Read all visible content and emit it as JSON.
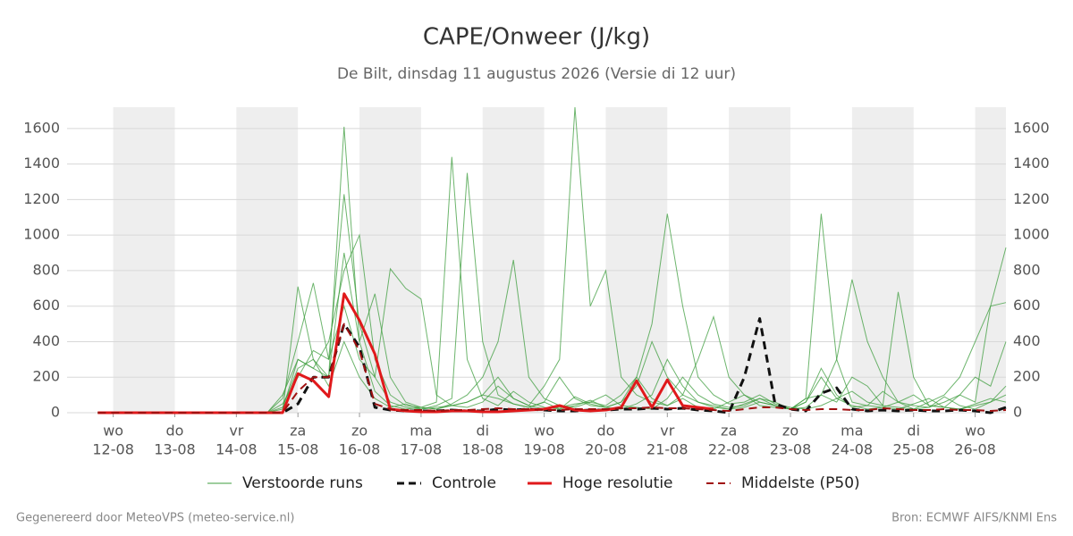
{
  "chart_data": {
    "type": "line",
    "title": "CAPE/Onweer (J/kg)",
    "subtitle": "De Bilt, dinsdag 11 augustus 2026 (Versie di 12 uur)",
    "footer_left": "Gegenereerd door MeteoVPS (meteo-service.nl)",
    "footer_right": "Bron: ECMWF AIFS/KNMI Ens",
    "x": [
      -6,
      0,
      6,
      12,
      18,
      24,
      30,
      36,
      42,
      48,
      54,
      60,
      66,
      72,
      78,
      84,
      90,
      96,
      102,
      108,
      114,
      120,
      126,
      132,
      138,
      144,
      150,
      156,
      162,
      168,
      174,
      180,
      186,
      192,
      198,
      204,
      210,
      216,
      222,
      228,
      234,
      240,
      246,
      252,
      258,
      264,
      270,
      276,
      282,
      288,
      294,
      300,
      306,
      312,
      318,
      324,
      330,
      336,
      342,
      348
    ],
    "xlim": [
      -18,
      348
    ],
    "xticks": [
      0,
      24,
      48,
      72,
      96,
      120,
      144,
      168,
      192,
      216,
      240,
      264,
      288,
      312,
      336
    ],
    "xtick_days": [
      "wo",
      "do",
      "vr",
      "za",
      "zo",
      "ma",
      "di",
      "wo",
      "do",
      "vr",
      "za",
      "zo",
      "ma",
      "di",
      "wo"
    ],
    "xtick_dates": [
      "12-08",
      "13-08",
      "14-08",
      "15-08",
      "16-08",
      "17-08",
      "18-08",
      "19-08",
      "20-08",
      "21-08",
      "22-08",
      "23-08",
      "24-08",
      "25-08",
      "26-08"
    ],
    "ylim": [
      0,
      1720
    ],
    "yticks": [
      0,
      200,
      400,
      600,
      800,
      1000,
      1200,
      1400,
      1600
    ],
    "grid": true,
    "day_shading": "#eeeeee",
    "ensemble": {
      "name": "Verstoorde runs",
      "color": "#3c9c3c",
      "members": [
        [
          0,
          0,
          0,
          0,
          0,
          0,
          0,
          0,
          0,
          0,
          0,
          0,
          100,
          300,
          250,
          200,
          1610,
          400,
          120,
          40,
          20,
          30,
          60,
          1440,
          300,
          80,
          40,
          120,
          60,
          30,
          20,
          90,
          50,
          30,
          60,
          200,
          80,
          40,
          100,
          60,
          30,
          20,
          50,
          80,
          40,
          20,
          60,
          250,
          100,
          30,
          40,
          120,
          60,
          20,
          30,
          90,
          40,
          20,
          60,
          150
        ],
        [
          0,
          0,
          0,
          0,
          0,
          0,
          0,
          0,
          0,
          0,
          0,
          0,
          50,
          200,
          350,
          300,
          1230,
          500,
          200,
          60,
          30,
          20,
          40,
          80,
          1350,
          400,
          100,
          50,
          30,
          60,
          20,
          40,
          70,
          30,
          20,
          50,
          100,
          300,
          150,
          60,
          40,
          20,
          30,
          60,
          40,
          20,
          80,
          1120,
          300,
          60,
          40,
          30,
          20,
          50,
          80,
          30,
          20,
          40,
          60,
          100
        ],
        [
          0,
          0,
          0,
          0,
          0,
          0,
          0,
          0,
          0,
          0,
          0,
          0,
          0,
          710,
          300,
          150,
          400,
          200,
          80,
          30,
          50,
          20,
          30,
          40,
          60,
          100,
          200,
          80,
          40,
          150,
          300,
          1720,
          600,
          800,
          200,
          100,
          60,
          40,
          80,
          30,
          20,
          60,
          100,
          40,
          30,
          20,
          60,
          200,
          80,
          40,
          20,
          30,
          60,
          100,
          40,
          30,
          20,
          50,
          80,
          60
        ],
        [
          0,
          0,
          0,
          0,
          0,
          0,
          0,
          0,
          0,
          0,
          0,
          0,
          20,
          300,
          250,
          400,
          800,
          1000,
          300,
          100,
          40,
          30,
          20,
          50,
          100,
          200,
          400,
          860,
          200,
          80,
          40,
          30,
          60,
          40,
          100,
          200,
          500,
          1120,
          600,
          200,
          100,
          50,
          60,
          100,
          50,
          30,
          20,
          40,
          80,
          120,
          60,
          40,
          30,
          20,
          60,
          100,
          200,
          400,
          600,
          930
        ],
        [
          0,
          0,
          0,
          0,
          0,
          0,
          0,
          0,
          0,
          0,
          0,
          0,
          80,
          400,
          730,
          300,
          600,
          300,
          200,
          810,
          700,
          640,
          100,
          40,
          30,
          60,
          150,
          80,
          40,
          20,
          30,
          50,
          60,
          100,
          40,
          30,
          20,
          80,
          200,
          100,
          50,
          30,
          40,
          80,
          60,
          20,
          30,
          100,
          60,
          200,
          150,
          40,
          680,
          200,
          40,
          30,
          100,
          60,
          600,
          620
        ],
        [
          0,
          0,
          0,
          0,
          0,
          0,
          0,
          0,
          0,
          0,
          0,
          0,
          30,
          250,
          300,
          200,
          900,
          400,
          670,
          200,
          60,
          30,
          20,
          40,
          60,
          100,
          80,
          50,
          30,
          60,
          200,
          80,
          40,
          30,
          60,
          150,
          400,
          200,
          100,
          300,
          540,
          200,
          100,
          60,
          40,
          20,
          80,
          100,
          300,
          750,
          400,
          200,
          60,
          40,
          30,
          60,
          100,
          200,
          150,
          400
        ]
      ]
    },
    "series": [
      {
        "name": "Controle",
        "color": "#111111",
        "dashed": true,
        "width": 3,
        "values": [
          0,
          0,
          0,
          0,
          0,
          0,
          0,
          0,
          0,
          0,
          0,
          0,
          0,
          50,
          200,
          200,
          500,
          370,
          30,
          15,
          10,
          10,
          10,
          15,
          10,
          10,
          20,
          15,
          20,
          15,
          10,
          10,
          15,
          15,
          20,
          20,
          25,
          20,
          25,
          15,
          10,
          0,
          200,
          530,
          50,
          20,
          10,
          110,
          140,
          20,
          10,
          15,
          10,
          15,
          10,
          10,
          15,
          10,
          0,
          30
        ]
      },
      {
        "name": "Hoge resolutie",
        "color": "#e0191b",
        "dashed": false,
        "width": 3,
        "values": [
          0,
          0,
          0,
          0,
          0,
          0,
          0,
          0,
          0,
          0,
          0,
          0,
          0,
          220,
          180,
          90,
          670,
          520,
          330,
          20,
          10,
          5,
          5,
          10,
          10,
          5,
          5,
          10,
          15,
          20,
          40,
          15,
          10,
          15,
          30,
          180,
          30,
          185,
          40,
          30,
          20,
          null,
          null,
          null,
          null,
          null,
          null,
          null,
          null,
          null,
          null,
          null,
          null,
          null,
          null,
          null,
          null,
          null,
          null,
          null
        ]
      },
      {
        "name": "Middelste (P50)",
        "color": "#a01010",
        "dashed": true,
        "width": 2,
        "values": [
          0,
          0,
          0,
          0,
          0,
          0,
          0,
          0,
          0,
          0,
          0,
          0,
          0,
          120,
          200,
          200,
          500,
          350,
          50,
          20,
          15,
          15,
          10,
          15,
          15,
          20,
          25,
          20,
          20,
          15,
          15,
          20,
          20,
          20,
          25,
          25,
          30,
          25,
          25,
          20,
          15,
          10,
          20,
          30,
          30,
          20,
          15,
          20,
          20,
          15,
          15,
          25,
          20,
          15,
          15,
          20,
          15,
          15,
          10,
          15
        ]
      }
    ]
  }
}
